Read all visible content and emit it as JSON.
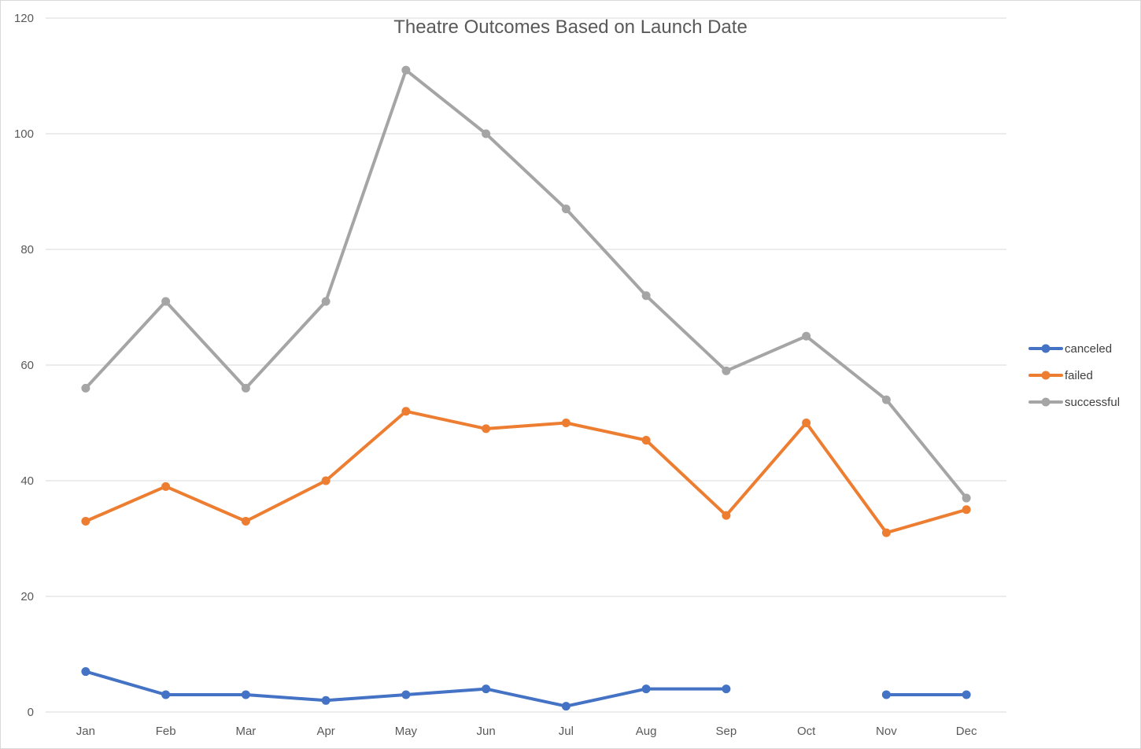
{
  "chart_data": {
    "type": "line",
    "title": "Theatre Outcomes Based on Launch Date",
    "xlabel": "",
    "ylabel": "",
    "categories": [
      "Jan",
      "Feb",
      "Mar",
      "Apr",
      "May",
      "Jun",
      "Jul",
      "Aug",
      "Sep",
      "Oct",
      "Nov",
      "Dec"
    ],
    "ylim": [
      0,
      120
    ],
    "yticks": [
      0,
      20,
      40,
      60,
      80,
      100,
      120
    ],
    "grid": true,
    "legend_position": "right",
    "series": [
      {
        "name": "canceled",
        "color": "#4472c4",
        "values": [
          7,
          3,
          3,
          2,
          3,
          4,
          1,
          4,
          4,
          null,
          3,
          3
        ]
      },
      {
        "name": "failed",
        "color": "#ed7d31",
        "values": [
          33,
          39,
          33,
          40,
          52,
          49,
          50,
          47,
          34,
          50,
          31,
          35
        ]
      },
      {
        "name": "successful",
        "color": "#a5a5a5",
        "values": [
          56,
          71,
          56,
          71,
          111,
          100,
          87,
          72,
          59,
          65,
          54,
          37
        ]
      }
    ]
  }
}
